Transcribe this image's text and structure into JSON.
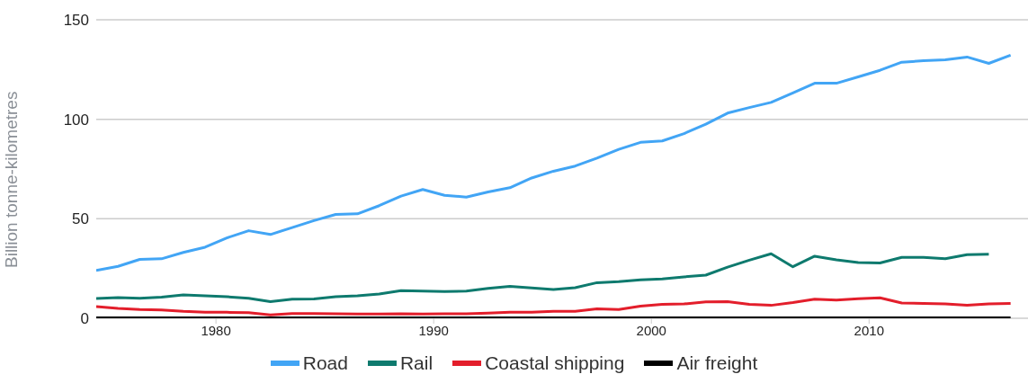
{
  "chart_data": {
    "type": "line",
    "ylabel": "Billion tonne-kilometres",
    "x": [
      1974.5,
      1975.5,
      1976.5,
      1977.5,
      1978.5,
      1979.5,
      1980.5,
      1981.5,
      1982.5,
      1983.5,
      1984.5,
      1985.5,
      1986.5,
      1987.5,
      1988.5,
      1989.5,
      1990.5,
      1991.5,
      1992.5,
      1993.5,
      1994.5,
      1995.5,
      1996.5,
      1997.5,
      1998.5,
      1999.5,
      2000.5,
      2001.5,
      2002.5,
      2003.5,
      2004.5,
      2005.5,
      2006.5,
      2007.5,
      2008.5,
      2009.5,
      2010.5,
      2011.5,
      2012.5,
      2013.5,
      2014.5,
      2015.5,
      2016.5
    ],
    "xlim": [
      1974.5,
      2017.3
    ],
    "xticks": [
      1980,
      1990,
      2000,
      2010
    ],
    "ylim": [
      0,
      150
    ],
    "yticks": [
      0,
      50,
      100,
      150
    ],
    "grid": "y",
    "legend": "bottom",
    "marker": "none",
    "line_style": "solid",
    "series": [
      {
        "name": "Road",
        "color": "#42a5f5",
        "values": [
          24.0,
          26.1,
          29.6,
          29.9,
          33.1,
          35.7,
          40.4,
          44.0,
          42.1,
          45.6,
          49.1,
          52.2,
          52.5,
          56.6,
          61.4,
          64.7,
          61.8,
          60.9,
          63.5,
          65.6,
          70.5,
          73.9,
          76.5,
          80.5,
          84.9,
          88.4,
          89.1,
          92.8,
          97.5,
          103.1,
          105.9,
          108.5,
          113.2,
          118.1,
          118.1,
          121.3,
          124.6,
          128.7,
          129.4,
          129.9,
          131.3,
          128.1,
          132.2
        ]
      },
      {
        "name": "Rail",
        "color": "#0e7a6e",
        "values": [
          9.9,
          10.4,
          10.1,
          10.6,
          11.7,
          11.3,
          10.8,
          10.1,
          8.4,
          9.6,
          9.7,
          10.8,
          11.3,
          12.2,
          13.9,
          13.7,
          13.4,
          13.7,
          15.0,
          16.0,
          15.2,
          14.5,
          15.4,
          17.9,
          18.4,
          19.3,
          19.8,
          20.8,
          21.7,
          25.7,
          29.2,
          32.4,
          25.9,
          31.2,
          29.4,
          28.0,
          27.8,
          30.6,
          30.6,
          29.9,
          32.0,
          32.2,
          null
        ]
      },
      {
        "name": "Coastal shipping",
        "color": "#e31e2b",
        "values": [
          5.9,
          5.0,
          4.4,
          4.2,
          3.5,
          3.1,
          3.0,
          2.8,
          1.7,
          2.4,
          2.4,
          2.3,
          2.1,
          2.1,
          2.3,
          2.1,
          2.3,
          2.3,
          2.6,
          3.0,
          3.0,
          3.5,
          3.5,
          4.7,
          4.4,
          6.1,
          7.0,
          7.2,
          8.2,
          8.4,
          7.0,
          6.5,
          7.9,
          9.6,
          9.1,
          9.8,
          10.3,
          7.7,
          7.5,
          7.2,
          6.5,
          7.2,
          7.5
        ]
      },
      {
        "name": "Air freight",
        "color": "#000000",
        "values": [
          0.2,
          0.2,
          0.2,
          0.2,
          0.2,
          0.2,
          0.2,
          0.2,
          0.2,
          0.2,
          0.2,
          0.2,
          0.2,
          0.2,
          0.2,
          0.2,
          0.2,
          0.2,
          0.2,
          0.2,
          0.2,
          0.2,
          0.2,
          0.2,
          0.2,
          0.2,
          0.2,
          0.2,
          0.2,
          0.2,
          0.2,
          0.2,
          0.2,
          0.2,
          0.2,
          0.2,
          0.2,
          0.2,
          0.2,
          0.2,
          0.2,
          0.2,
          0.2
        ]
      }
    ]
  }
}
